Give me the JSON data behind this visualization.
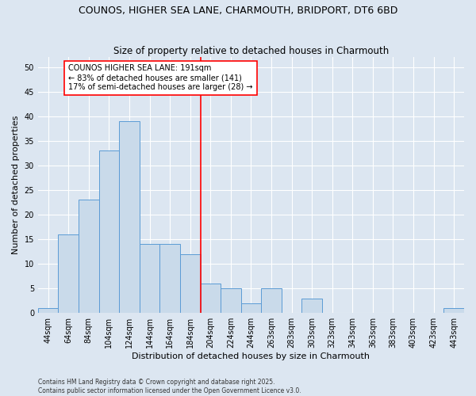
{
  "title": "COUNOS, HIGHER SEA LANE, CHARMOUTH, BRIDPORT, DT6 6BD",
  "subtitle": "Size of property relative to detached houses in Charmouth",
  "xlabel": "Distribution of detached houses by size in Charmouth",
  "ylabel": "Number of detached properties",
  "bar_color": "#c9daea",
  "bar_edge_color": "#5b9bd5",
  "background_color": "#dce6f1",
  "categories": [
    "44sqm",
    "64sqm",
    "84sqm",
    "104sqm",
    "124sqm",
    "144sqm",
    "164sqm",
    "184sqm",
    "204sqm",
    "224sqm",
    "244sqm",
    "263sqm",
    "283sqm",
    "303sqm",
    "323sqm",
    "343sqm",
    "363sqm",
    "383sqm",
    "403sqm",
    "423sqm",
    "443sqm"
  ],
  "values": [
    1,
    16,
    23,
    33,
    39,
    14,
    14,
    12,
    6,
    5,
    2,
    5,
    0,
    3,
    0,
    0,
    0,
    0,
    0,
    0,
    1
  ],
  "ylim": [
    0,
    52
  ],
  "yticks": [
    0,
    5,
    10,
    15,
    20,
    25,
    30,
    35,
    40,
    45,
    50
  ],
  "vline_color": "#ff0000",
  "annotation_text": "COUNOS HIGHER SEA LANE: 191sqm\n← 83% of detached houses are smaller (141)\n17% of semi-detached houses are larger (28) →",
  "annotation_box_color": "#ffffff",
  "annotation_box_edge": "#ff0000",
  "footer_line1": "Contains HM Land Registry data © Crown copyright and database right 2025.",
  "footer_line2": "Contains public sector information licensed under the Open Government Licence v3.0.",
  "grid_color": "#ffffff",
  "title_fontsize": 9,
  "subtitle_fontsize": 8.5,
  "tick_fontsize": 7,
  "label_fontsize": 8,
  "annot_fontsize": 7,
  "footer_fontsize": 5.5
}
